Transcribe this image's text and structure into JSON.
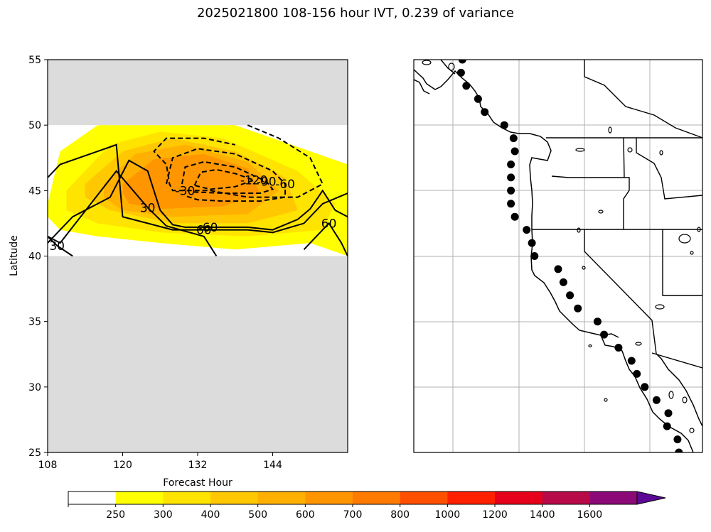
{
  "title": "2025021800 108-156 hour IVT, 0.239 of variance",
  "chart_data": [
    {
      "type": "contour",
      "xlabel": "Forecast Hour",
      "ylabel": "Latitude",
      "xlim": [
        108,
        156
      ],
      "ylim": [
        25,
        55
      ],
      "xticks": [
        108,
        120,
        132,
        144
      ],
      "yticks": [
        25,
        30,
        35,
        40,
        45,
        50,
        55
      ],
      "valid_lat_range": [
        40,
        50
      ],
      "missing_fill_color": "#dcdcdc",
      "filled_contours": [
        {
          "level": 250,
          "x": [
            108,
            110,
            116,
            126,
            138,
            150,
            156,
            156,
            150,
            138,
            126,
            116,
            110,
            108
          ],
          "y": [
            44,
            48,
            50,
            50,
            50,
            48,
            47,
            40,
            41,
            40.5,
            41,
            41.5,
            42,
            43
          ]
        },
        {
          "level": 300,
          "x": [
            111,
            118,
            126,
            136,
            148,
            154,
            152,
            140,
            126,
            116,
            111
          ],
          "y": [
            45,
            48.5,
            49.5,
            49,
            46.5,
            44,
            42,
            41.5,
            41.8,
            42.5,
            43.5
          ]
        },
        {
          "level": 400,
          "x": [
            114,
            120,
            128,
            138,
            146,
            148,
            140,
            128,
            118,
            114
          ],
          "y": [
            45.5,
            48,
            49,
            48,
            46,
            43.5,
            42.5,
            42.5,
            43.5,
            44.5
          ]
        },
        {
          "level": 500,
          "x": [
            117,
            122,
            130,
            140,
            145,
            140,
            128,
            120,
            117
          ],
          "y": [
            45.5,
            47.8,
            48.5,
            47.2,
            45,
            43.2,
            43,
            43.5,
            44.5
          ]
        },
        {
          "level": 600,
          "x": [
            120,
            125,
            133,
            140,
            142,
            136,
            126,
            121,
            120
          ],
          "y": [
            45.5,
            47.4,
            47.8,
            46.7,
            44.8,
            43.8,
            43.6,
            44,
            44.8
          ]
        }
      ],
      "line_contours": [
        {
          "level": 30,
          "label": "30",
          "style": "solid",
          "x": [
            108,
            110,
            119,
            124,
            127,
            133,
            135
          ],
          "y": [
            41.5,
            41,
            46.5,
            43.7,
            42.3,
            41.5,
            40
          ]
        },
        {
          "level": 60,
          "label": "60",
          "style": "solid",
          "x": [
            108,
            110,
            119,
            120,
            124,
            128,
            133,
            140,
            144,
            149,
            152,
            156
          ],
          "y": [
            46,
            47,
            48.5,
            43,
            42.5,
            42,
            42,
            42,
            41.8,
            42.5,
            44,
            44.8
          ]
        },
        {
          "level": 60,
          "label": "60",
          "style": "solid",
          "x": [
            108,
            112,
            118,
            121,
            124,
            126,
            128,
            130,
            134,
            140,
            144,
            148,
            150,
            152,
            154,
            156
          ],
          "y": [
            41,
            43,
            44.5,
            47.3,
            46.5,
            43.5,
            42.4,
            42.2,
            42.2,
            42.2,
            42,
            42.8,
            43.6,
            45,
            43.5,
            43
          ]
        },
        {
          "level": 30,
          "label": "30",
          "style": "solid",
          "x": [
            108,
            109.5,
            112
          ],
          "y": [
            41.5,
            40.8,
            40
          ]
        },
        {
          "level": 60,
          "label": "60",
          "style": "solid",
          "x": [
            149,
            151,
            153,
            155,
            156
          ],
          "y": [
            40.5,
            41.5,
            42.5,
            41,
            40
          ]
        },
        {
          "level": -30,
          "label": "-30",
          "style": "dashed",
          "x": [
            140,
            145,
            150,
            152,
            148,
            140,
            134,
            130,
            128,
            127.5,
            127,
            125,
            127,
            133,
            138
          ],
          "y": [
            50,
            49,
            47.5,
            45.5,
            44.5,
            44.5,
            45,
            45,
            45,
            45.5,
            47,
            48,
            49,
            49,
            48.5
          ]
        },
        {
          "level": -60,
          "label": "-60",
          "style": "dashed",
          "x": [
            127,
            128,
            132,
            138,
            144,
            146,
            146,
            142,
            136,
            132,
            130
          ],
          "y": [
            45.5,
            47.5,
            48.2,
            47.8,
            46.5,
            45.5,
            44.5,
            44.2,
            44.2,
            44.3,
            44.6
          ]
        },
        {
          "level": -90,
          "label": "-90",
          "style": "dashed",
          "x": [
            129.5,
            130,
            133,
            138,
            143,
            144,
            142,
            136,
            131
          ],
          "y": [
            45.5,
            46.8,
            47.2,
            46.8,
            45.7,
            45.1,
            44.8,
            44.8,
            44.9
          ]
        },
        {
          "level": -120,
          "label": "-120",
          "style": "dashed",
          "x": [
            131.5,
            132.5,
            135,
            138,
            141,
            138,
            134,
            131.5
          ],
          "y": [
            45.4,
            46.4,
            46.6,
            46.3,
            45.8,
            45.3,
            45.1,
            45.4
          ]
        }
      ],
      "contour_labels": [
        "60",
        "30",
        "-120",
        "-90",
        "-60",
        "-30",
        "60",
        "30"
      ]
    },
    {
      "type": "scatter",
      "map": "US West Coast",
      "points_lat": [
        55.0,
        54.0,
        53.0,
        52.0,
        51.0,
        50.0,
        49.0,
        48.0,
        47.0,
        46.0,
        45.0,
        44.0,
        43.0,
        42.0,
        41.0,
        40.0,
        39.0,
        38.0,
        37.0,
        36.0,
        35.0,
        34.0,
        33.0,
        32.0,
        31.0,
        30.0,
        29.0,
        28.0,
        27.0,
        26.0,
        25.0
      ],
      "points_lon": [
        -131.5,
        -131.6,
        -131.2,
        -130.3,
        -129.8,
        -128.3,
        -127.6,
        -127.5,
        -127.8,
        -127.8,
        -127.8,
        -127.8,
        -127.5,
        -126.6,
        -126.2,
        -126.0,
        -124.2,
        -123.8,
        -123.3,
        -122.7,
        -121.2,
        -120.7,
        -119.6,
        -118.6,
        -118.2,
        -117.6,
        -116.7,
        -115.8,
        -115.9,
        -115.1,
        -115.0
      ],
      "marker_color": "#000000"
    }
  ],
  "colorbar": {
    "levels": [
      250,
      300,
      400,
      500,
      600,
      700,
      800,
      1000,
      1200,
      1400,
      1600
    ],
    "tick_labels": [
      "250",
      "300",
      "400",
      "500",
      "600",
      "700",
      "800",
      "1000",
      "1200",
      "1400",
      "1600"
    ],
    "colors": [
      "#ffffff",
      "#ffff00",
      "#ffe400",
      "#ffc800",
      "#ffb000",
      "#ff9600",
      "#ff7a00",
      "#ff5000",
      "#ff2000",
      "#e6001a",
      "#b80a48",
      "#8c0a78",
      "#5c0a96"
    ],
    "extend": "max"
  }
}
